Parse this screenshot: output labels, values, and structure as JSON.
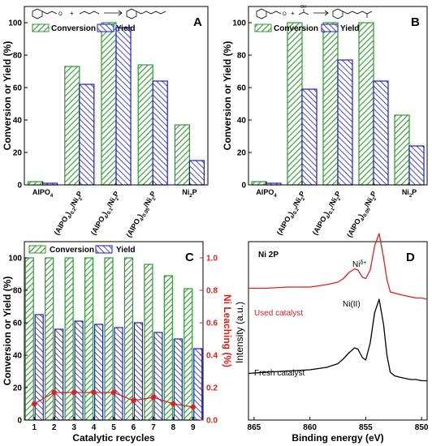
{
  "colors": {
    "green": "#2e9a2e",
    "blue": "#1a1ad0",
    "red": "#e0201a",
    "black": "#000000"
  },
  "chart_data": [
    {
      "panel": "A",
      "type": "bar",
      "ylabel": "Conversion or Yield (%)",
      "ylim": [
        0,
        110
      ],
      "yticks": [
        0,
        20,
        40,
        60,
        80,
        100
      ],
      "legend": [
        "Conversion",
        "Yield"
      ],
      "categories": [
        {
          "base": "AlPO",
          "sub": "4",
          "rest": []
        },
        {
          "base": "(AlPO",
          "sub": "4",
          "rest": [
            [
              ")",
              "0.2",
              false
            ],
            [
              "/Ni",
              "2",
              false
            ],
            [
              "P",
              "",
              false
            ]
          ]
        },
        {
          "base": "(AlPO",
          "sub": "4",
          "rest": [
            [
              ")",
              "0.1",
              false
            ],
            [
              "/Ni",
              "2",
              false
            ],
            [
              "P",
              "",
              false
            ]
          ]
        },
        {
          "base": "(AlPO",
          "sub": "4",
          "rest": [
            [
              ")",
              "0.05",
              false
            ],
            [
              "/Ni",
              "2",
              false
            ],
            [
              "P",
              "",
              false
            ]
          ]
        },
        {
          "base": "Ni",
          "sub": "2",
          "rest": [
            [
              "P",
              "",
              false
            ]
          ]
        }
      ],
      "series": [
        {
          "name": "Conversion",
          "values": [
            2,
            73,
            100,
            74,
            37
          ]
        },
        {
          "name": "Yield",
          "values": [
            1,
            62,
            97,
            64,
            15
          ]
        }
      ]
    },
    {
      "panel": "B",
      "type": "bar",
      "ylabel": "Conversion or Yield (%)",
      "ylim": [
        0,
        110
      ],
      "yticks": [
        0,
        20,
        40,
        60,
        80,
        100
      ],
      "legend": [
        "Conversion",
        "Yield"
      ],
      "categories": [
        {
          "base": "AlPO",
          "sub": "4",
          "rest": []
        },
        {
          "base": "(AlPO",
          "sub": "4",
          "rest": [
            [
              ")",
              "0.2",
              false
            ],
            [
              "/Ni",
              "2",
              false
            ],
            [
              "P",
              "",
              false
            ]
          ]
        },
        {
          "base": "(AlPO",
          "sub": "4",
          "rest": [
            [
              ")",
              "0.1",
              false
            ],
            [
              "/Ni",
              "2",
              false
            ],
            [
              "P",
              "",
              false
            ]
          ]
        },
        {
          "base": "(AlPO",
          "sub": "4",
          "rest": [
            [
              ")",
              "0.05",
              false
            ],
            [
              "/Ni",
              "2",
              false
            ],
            [
              "P",
              "",
              false
            ]
          ]
        },
        {
          "base": "Ni",
          "sub": "2",
          "rest": [
            [
              "P",
              "",
              false
            ]
          ]
        }
      ],
      "series": [
        {
          "name": "Conversion",
          "values": [
            2,
            100,
            100,
            100,
            43
          ]
        },
        {
          "name": "Yield",
          "values": [
            1,
            59,
            77,
            64,
            24
          ]
        }
      ]
    },
    {
      "panel": "C",
      "type": "bar",
      "xlabel": "Catalytic recycles",
      "ylabel": "Conversion or Yield (%)",
      "y2label": "Ni Leaching (%)",
      "ylim": [
        0,
        110
      ],
      "y2lim": [
        0,
        1.1
      ],
      "yticks": [
        0,
        20,
        40,
        60,
        80,
        100
      ],
      "y2ticks": [
        "0.0",
        "0.2",
        "0.4",
        "0.6",
        "0.8",
        "1.0"
      ],
      "legend": [
        "Conversion",
        "Yield"
      ],
      "categories": [
        "1",
        "2",
        "3",
        "4",
        "5",
        "6",
        "7",
        "8",
        "9"
      ],
      "series": [
        {
          "name": "Conversion",
          "values": [
            100,
            100,
            100,
            100,
            100,
            100,
            96,
            89,
            81
          ]
        },
        {
          "name": "Yield",
          "values": [
            65,
            56,
            61,
            59,
            57,
            60,
            54,
            50,
            44
          ]
        }
      ],
      "line": {
        "values": [
          0.1,
          0.17,
          0.17,
          0.17,
          0.17,
          0.12,
          0.14,
          0.1,
          0.08
        ]
      }
    },
    {
      "panel": "D",
      "type": "line",
      "title": "Ni 2P",
      "xlabel": "Binding energy (eV)",
      "ylabel": "Intensity (a.u.)",
      "xlim": [
        865.5,
        849.5
      ],
      "xticks": [
        865,
        860,
        855,
        850
      ],
      "annotations": {
        "ni2": "Ni(II)",
        "nid_base": "Ni",
        "nid_sup": "δ+"
      },
      "series": [
        {
          "name": "Used catalyst",
          "x": [
            865.5,
            864,
            862,
            860,
            858.5,
            857.5,
            857,
            856.5,
            856,
            855.7,
            855.3,
            855,
            854.6,
            854.2,
            853.8,
            853.4,
            853.1,
            852.8,
            852.4,
            852,
            851.5,
            851,
            850.5,
            850,
            849.5
          ],
          "y": [
            35,
            35,
            36,
            36,
            38,
            40,
            43,
            48,
            51,
            50,
            44,
            43,
            50,
            70,
            80,
            60,
            42,
            32,
            31,
            30,
            29,
            28,
            27,
            27,
            26
          ]
        },
        {
          "name": "Fresh catalyst",
          "x": [
            865.5,
            864,
            862,
            860,
            858.5,
            857.5,
            857,
            856.5,
            856,
            855.7,
            855.3,
            855,
            854.6,
            854.2,
            853.8,
            853.4,
            853.1,
            852.8,
            852.4,
            852,
            851.5,
            851,
            850.5,
            850,
            849.5
          ],
          "y": [
            -35,
            -34,
            -33,
            -32,
            -30,
            -27,
            -23,
            -18,
            -14,
            -15,
            -22,
            -24,
            -10,
            15,
            26,
            5,
            -20,
            -34,
            -37,
            -38,
            -39,
            -40,
            -40,
            -41,
            -41
          ]
        }
      ]
    }
  ]
}
